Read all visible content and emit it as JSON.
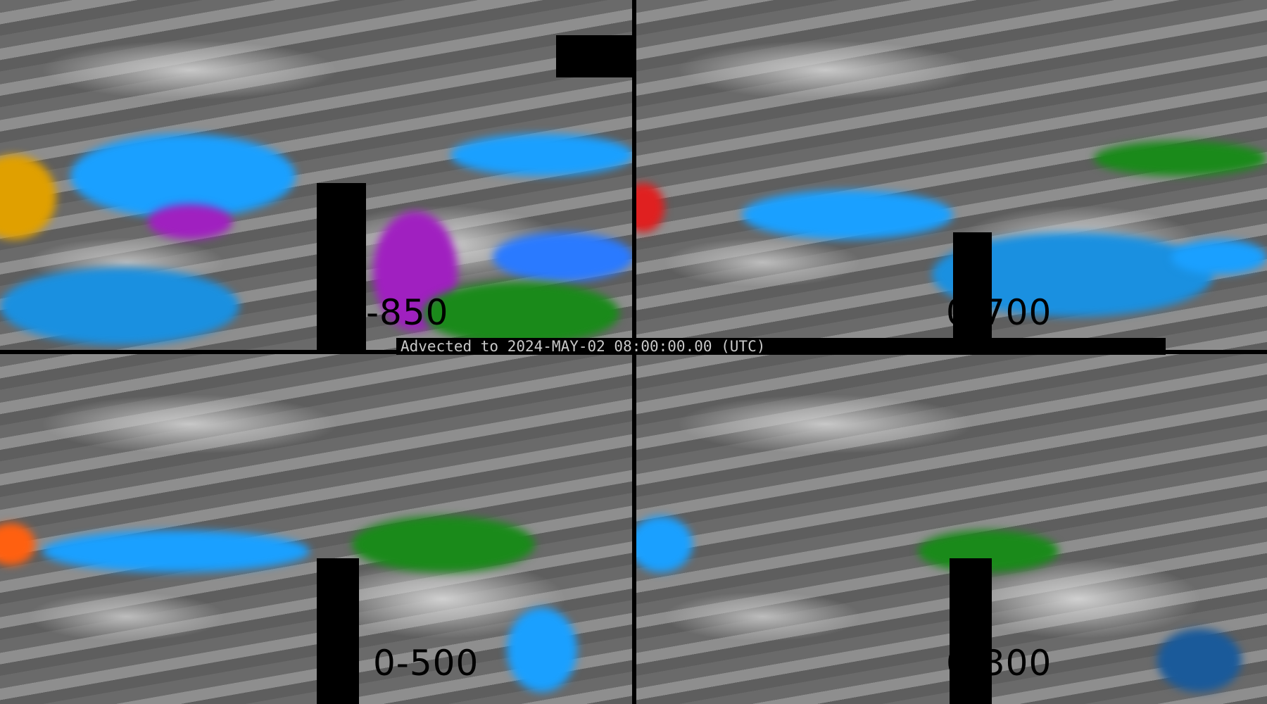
{
  "banner": {
    "text": "Advected to 2024-MAY-02 08:00:00.00 (UTC)"
  },
  "panels": [
    {
      "level_label": "-850"
    },
    {
      "level_label": "0-700"
    },
    {
      "level_label": "0-500"
    },
    {
      "level_label": "0-300"
    }
  ],
  "colors": {
    "low": "#1a8a1a",
    "mid": "#1aa0ff",
    "high": "#a020c0",
    "max": "#e02020"
  }
}
